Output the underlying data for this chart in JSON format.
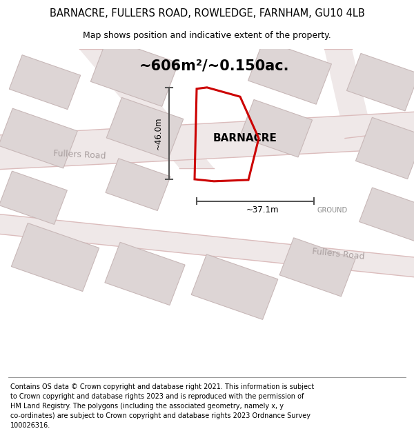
{
  "title_line1": "BARNACRE, FULLERS ROAD, ROWLEDGE, FARNHAM, GU10 4LB",
  "title_line2": "Map shows position and indicative extent of the property.",
  "area_text": "~606m²/~0.150ac.",
  "property_name": "BARNACRE",
  "dim_vertical": "~46.0m",
  "dim_horizontal": "~37.1m",
  "road_label1": "Fullers Road",
  "road_label2": "Fullers Road",
  "ground_text": "GROUND",
  "footer_text": "Contains OS data © Crown copyright and database right 2021. This information is subject to Crown copyright and database rights 2023 and is reproduced with the permission of HM Land Registry. The polygons (including the associated geometry, namely x, y co-ordinates) are subject to Crown copyright and database rights 2023 Ordnance Survey 100026316.",
  "map_bg": "#f7f2f2",
  "road_fill": "#efe8e8",
  "road_line": "#dbbcbc",
  "building_fill": "#ddd5d5",
  "building_edge": "#c8b8b8",
  "property_color": "#cc0000",
  "dim_color": "#555555",
  "road_text_color": "#aaa0a0",
  "fig_width": 6.0,
  "fig_height": 6.25
}
